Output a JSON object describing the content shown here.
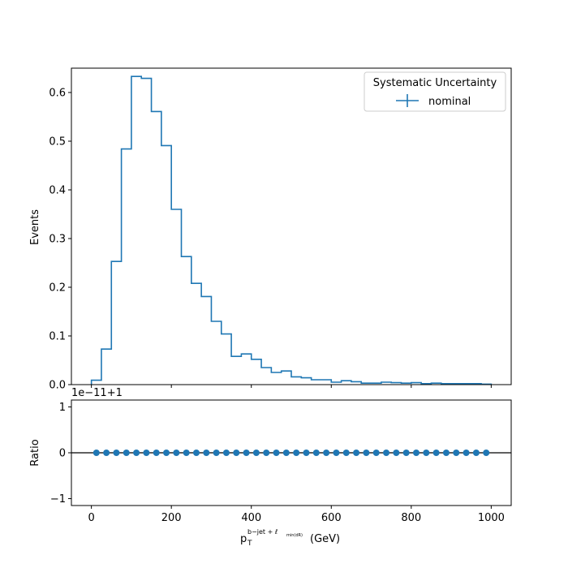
{
  "chart_data": [
    {
      "type": "step",
      "ylabel": "Events",
      "xlim": [
        -50,
        1050
      ],
      "ylim": [
        0,
        0.65
      ],
      "yticks": [
        "0.0",
        "0.1",
        "0.2",
        "0.3",
        "0.4",
        "0.5",
        "0.6"
      ],
      "ytick_values": [
        0,
        0.1,
        0.2,
        0.3,
        0.4,
        0.5,
        0.6
      ],
      "bin_edges": [
        0,
        25,
        50,
        75,
        100,
        125,
        150,
        175,
        200,
        225,
        250,
        275,
        300,
        325,
        350,
        375,
        400,
        425,
        450,
        475,
        500,
        525,
        550,
        575,
        600,
        625,
        650,
        675,
        700,
        725,
        750,
        775,
        800,
        825,
        850,
        875,
        900,
        925,
        950,
        975,
        1000
      ],
      "values": [
        0.009,
        0.073,
        0.253,
        0.484,
        0.633,
        0.629,
        0.561,
        0.491,
        0.36,
        0.263,
        0.208,
        0.181,
        0.13,
        0.104,
        0.058,
        0.063,
        0.052,
        0.035,
        0.025,
        0.028,
        0.016,
        0.014,
        0.01,
        0.01,
        0.005,
        0.008,
        0.006,
        0.003,
        0.003,
        0.005,
        0.004,
        0.003,
        0.004,
        0.002,
        0.003,
        0.002,
        0.002,
        0.002,
        0.002,
        0.001
      ],
      "legend": {
        "title": "Systematic Uncertainty",
        "entries": [
          "nominal"
        ],
        "placement": "top-right"
      },
      "color": "#1f77b4"
    },
    {
      "type": "scatter",
      "ylabel": "Ratio",
      "offset_text": "1e−11+1",
      "ylim": [
        -1.15,
        1.15
      ],
      "yticks": [
        "−1",
        "0",
        "1"
      ],
      "ytick_values": [
        -1,
        0,
        1
      ],
      "xticks": [
        "0",
        "200",
        "400",
        "600",
        "800",
        "1000"
      ],
      "xtick_values": [
        0,
        200,
        400,
        600,
        800,
        1000
      ],
      "xlabel_main": "p",
      "xlabel_sub": "T",
      "xlabel_sup": "b−jet + ℓ",
      "xlabel_supsub": "min(dR)",
      "xlabel_unit": "(GeV)",
      "x": [
        12.5,
        37.5,
        62.5,
        87.5,
        112.5,
        137.5,
        162.5,
        187.5,
        212.5,
        237.5,
        262.5,
        287.5,
        312.5,
        337.5,
        362.5,
        387.5,
        412.5,
        437.5,
        462.5,
        487.5,
        512.5,
        537.5,
        562.5,
        587.5,
        612.5,
        637.5,
        662.5,
        687.5,
        712.5,
        737.5,
        762.5,
        787.5,
        812.5,
        837.5,
        862.5,
        887.5,
        912.5,
        937.5,
        962.5,
        987.5
      ],
      "y": [
        0,
        0,
        0,
        0,
        0,
        0,
        0,
        0,
        0,
        0,
        0,
        0,
        0,
        0,
        0,
        0,
        0,
        0,
        0,
        0,
        0,
        0,
        0,
        0,
        0,
        0,
        0,
        0,
        0,
        0,
        0,
        0,
        0,
        0,
        0,
        0,
        0,
        0,
        0,
        0
      ],
      "reference_line": 0,
      "color": "#1f77b4"
    }
  ]
}
